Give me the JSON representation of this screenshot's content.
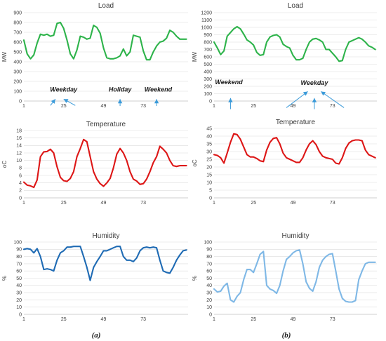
{
  "chart_data": [
    {
      "panel": "a",
      "metric": "load",
      "type": "line",
      "title": "Load",
      "ylabel": "MW",
      "ylim": [
        0,
        900
      ],
      "yticks": [
        0,
        100,
        200,
        300,
        400,
        500,
        600,
        700,
        800,
        900
      ],
      "xlim": [
        1,
        100
      ],
      "xticks": [
        1,
        25,
        49,
        73
      ],
      "color": "#2db34a",
      "grid": true,
      "series": [
        {
          "x": [
            1,
            3,
            5,
            7,
            9,
            11,
            13,
            15,
            17,
            19,
            21,
            23,
            25,
            27,
            29,
            31,
            33,
            35,
            37,
            39,
            41,
            43,
            45,
            47,
            49,
            51,
            53,
            55,
            57,
            59,
            61,
            63,
            65,
            67,
            69,
            71,
            73,
            75,
            77,
            79,
            81,
            83,
            85,
            87,
            89,
            91,
            93,
            95,
            97,
            99
          ],
          "values": [
            620,
            480,
            430,
            470,
            590,
            680,
            670,
            680,
            660,
            670,
            790,
            800,
            740,
            620,
            480,
            430,
            520,
            660,
            650,
            630,
            640,
            770,
            750,
            690,
            540,
            440,
            430,
            430,
            440,
            460,
            530,
            460,
            500,
            670,
            660,
            650,
            510,
            420,
            420,
            500,
            560,
            600,
            610,
            640,
            720,
            700,
            660,
            630,
            630,
            630
          ]
        }
      ],
      "annotations": [
        {
          "text": "Weekday",
          "x": 25,
          "y": 95,
          "arrows": [
            {
              "from_x": 17,
              "from_y": -45,
              "to_x": 20,
              "to_y": 20
            },
            {
              "from_x": 32,
              "from_y": -45,
              "to_x": 25,
              "to_y": 20
            }
          ]
        },
        {
          "text": "Holiday",
          "x": 59,
          "y": 95,
          "arrows": [
            {
              "from_x": 59,
              "from_y": -50,
              "to_x": 59,
              "to_y": 20
            }
          ]
        },
        {
          "text": "Weekend",
          "x": 82,
          "y": 95,
          "arrows": [
            {
              "from_x": 81,
              "from_y": -50,
              "to_x": 81,
              "to_y": 20
            }
          ]
        }
      ]
    },
    {
      "panel": "b",
      "metric": "load",
      "type": "line",
      "title": "Load",
      "ylabel": "MW",
      "ylim": [
        0,
        1200
      ],
      "yticks": [
        0,
        100,
        200,
        300,
        400,
        500,
        600,
        700,
        800,
        900,
        1000,
        1100,
        1200
      ],
      "xlim": [
        1,
        100
      ],
      "xticks": [
        1,
        25,
        49,
        73
      ],
      "color": "#2db34a",
      "grid": true,
      "series": [
        {
          "x": [
            1,
            3,
            5,
            7,
            9,
            11,
            13,
            15,
            17,
            19,
            21,
            23,
            25,
            27,
            29,
            31,
            33,
            35,
            37,
            39,
            41,
            43,
            45,
            47,
            49,
            51,
            53,
            55,
            57,
            59,
            61,
            63,
            65,
            67,
            69,
            71,
            73,
            75,
            77,
            79,
            81,
            83,
            85,
            87,
            89,
            91,
            93,
            95,
            97,
            99
          ],
          "values": [
            800,
            720,
            630,
            680,
            880,
            930,
            980,
            1010,
            980,
            910,
            830,
            800,
            760,
            660,
            620,
            630,
            800,
            870,
            890,
            900,
            870,
            770,
            740,
            720,
            620,
            560,
            560,
            580,
            700,
            800,
            840,
            850,
            830,
            800,
            700,
            700,
            650,
            600,
            540,
            550,
            700,
            800,
            820,
            840,
            860,
            840,
            800,
            750,
            730,
            700
          ]
        }
      ],
      "annotations": [
        {
          "text": "Weekend",
          "x": 10,
          "y": 230,
          "arrows": [
            {
              "from_x": 11,
              "from_y": -110,
              "to_x": 11,
              "to_y": 40
            }
          ]
        },
        {
          "text": "Weekday",
          "x": 62,
          "y": 220,
          "arrows": [
            {
              "from_x": 45,
              "from_y": -90,
              "to_x": 58,
              "to_y": 130
            },
            {
              "from_x": 62,
              "from_y": -110,
              "to_x": 62,
              "to_y": 40
            },
            {
              "from_x": 80,
              "from_y": -90,
              "to_x": 66,
              "to_y": 130
            }
          ]
        }
      ]
    },
    {
      "panel": "a",
      "metric": "temperature",
      "type": "line",
      "title": "Temperature",
      "ylabel": "oC",
      "ylim": [
        0,
        18
      ],
      "yticks": [
        0,
        2,
        4,
        6,
        8,
        10,
        12,
        14,
        16,
        18
      ],
      "xlim": [
        1,
        100
      ],
      "xticks": [
        1,
        25,
        49,
        73
      ],
      "color": "#dd1616",
      "grid": true,
      "series": [
        {
          "x": [
            1,
            3,
            5,
            7,
            9,
            11,
            13,
            15,
            17,
            19,
            21,
            23,
            25,
            27,
            29,
            31,
            33,
            35,
            37,
            39,
            41,
            43,
            45,
            47,
            49,
            51,
            53,
            55,
            57,
            59,
            61,
            63,
            65,
            67,
            69,
            71,
            73,
            75,
            77,
            79,
            81,
            83,
            85,
            87,
            89,
            91,
            93,
            95,
            97,
            99
          ],
          "values": [
            4.2,
            3.4,
            3.2,
            2.8,
            4.8,
            11,
            12.3,
            12.4,
            13,
            12,
            8.3,
            5.5,
            4.6,
            4.4,
            5.2,
            7,
            11,
            13.2,
            15.6,
            15,
            11,
            7,
            5,
            3.8,
            3.1,
            4,
            5.2,
            8,
            11.7,
            13.2,
            12,
            10,
            7,
            5,
            4.5,
            3.6,
            3.8,
            5,
            7,
            9.4,
            11,
            13.8,
            13,
            12,
            10,
            8.6,
            8.4,
            8.6,
            8.6,
            8.6
          ]
        }
      ]
    },
    {
      "panel": "b",
      "metric": "temperature",
      "type": "line",
      "title": "Temperature",
      "ylabel": "oC",
      "ylim": [
        0,
        45
      ],
      "yticks": [
        0,
        5,
        10,
        15,
        20,
        25,
        30,
        35,
        40,
        45
      ],
      "xlim": [
        1,
        100
      ],
      "xticks": [
        1,
        25,
        49,
        73
      ],
      "color": "#dd1616",
      "grid": true,
      "series": [
        {
          "x": [
            1,
            3,
            5,
            7,
            9,
            11,
            13,
            15,
            17,
            19,
            21,
            23,
            25,
            27,
            29,
            31,
            33,
            35,
            37,
            39,
            41,
            43,
            45,
            47,
            49,
            51,
            53,
            55,
            57,
            59,
            61,
            63,
            65,
            67,
            69,
            71,
            73,
            75,
            77,
            79,
            81,
            83,
            85,
            87,
            89,
            91,
            93,
            95,
            97,
            99
          ],
          "values": [
            28,
            27.5,
            26,
            22.5,
            29,
            36,
            41.5,
            41,
            38,
            33,
            28,
            26.5,
            26.5,
            25.5,
            24,
            23.5,
            31,
            36,
            38.5,
            39,
            35,
            29,
            26,
            25,
            24,
            23,
            23,
            26,
            31,
            35,
            37,
            34.5,
            30,
            27,
            26,
            25.5,
            25,
            22.5,
            22,
            26,
            32,
            35.5,
            37,
            37.5,
            37.5,
            37,
            31,
            28,
            27,
            26
          ]
        }
      ]
    },
    {
      "panel": "a",
      "metric": "humidity",
      "type": "line",
      "title": "Humidity",
      "ylabel": "%",
      "ylim": [
        0,
        100
      ],
      "yticks": [
        0,
        10,
        20,
        30,
        40,
        50,
        60,
        70,
        80,
        90,
        100
      ],
      "xlim": [
        1,
        100
      ],
      "xticks": [
        1,
        25,
        49,
        73
      ],
      "color": "#1f6bb4",
      "grid": true,
      "series": [
        {
          "x": [
            1,
            3,
            5,
            7,
            9,
            11,
            13,
            15,
            17,
            19,
            21,
            23,
            25,
            27,
            29,
            31,
            33,
            35,
            37,
            39,
            41,
            43,
            45,
            47,
            49,
            51,
            53,
            55,
            57,
            59,
            61,
            63,
            65,
            67,
            69,
            71,
            73,
            75,
            77,
            79,
            81,
            83,
            85,
            87,
            89,
            91,
            93,
            95,
            97,
            99
          ],
          "values": [
            90,
            91,
            90,
            85,
            91,
            80,
            62,
            63,
            62,
            60,
            75,
            85,
            88,
            93,
            93,
            94,
            94,
            94,
            80,
            65,
            47,
            65,
            73,
            80,
            88,
            88,
            90,
            92,
            94,
            94,
            80,
            75,
            75,
            73,
            78,
            88,
            92,
            93,
            92,
            93,
            92,
            75,
            60,
            58,
            57,
            65,
            75,
            82,
            88,
            89
          ]
        }
      ]
    },
    {
      "panel": "b",
      "metric": "humidity",
      "type": "line",
      "title": "Humidity",
      "ylabel": "%",
      "ylim": [
        0,
        100
      ],
      "yticks": [
        0,
        10,
        20,
        30,
        40,
        50,
        60,
        70,
        80,
        90,
        100
      ],
      "xlim": [
        1,
        100
      ],
      "xticks": [
        1,
        25,
        49,
        73
      ],
      "color": "#7fb8e6",
      "grid": true,
      "series": [
        {
          "x": [
            1,
            3,
            5,
            7,
            9,
            11,
            13,
            15,
            17,
            19,
            21,
            23,
            25,
            27,
            29,
            31,
            33,
            35,
            37,
            39,
            41,
            43,
            45,
            47,
            49,
            51,
            53,
            55,
            57,
            59,
            61,
            63,
            65,
            67,
            69,
            71,
            73,
            75,
            77,
            79,
            81,
            83,
            85,
            87,
            89,
            91,
            93,
            95,
            97,
            99
          ],
          "values": [
            35,
            31,
            32,
            39,
            43,
            20,
            17,
            25,
            30,
            48,
            62,
            62,
            58,
            70,
            83,
            87,
            40,
            35,
            33,
            29,
            40,
            60,
            76,
            80,
            85,
            88,
            89,
            70,
            45,
            36,
            32,
            45,
            65,
            75,
            80,
            83,
            84,
            60,
            35,
            22,
            18,
            17,
            17,
            19,
            48,
            60,
            70,
            72,
            72,
            72
          ]
        }
      ]
    }
  ],
  "captions": {
    "left": "(a)",
    "right": "(b)"
  }
}
